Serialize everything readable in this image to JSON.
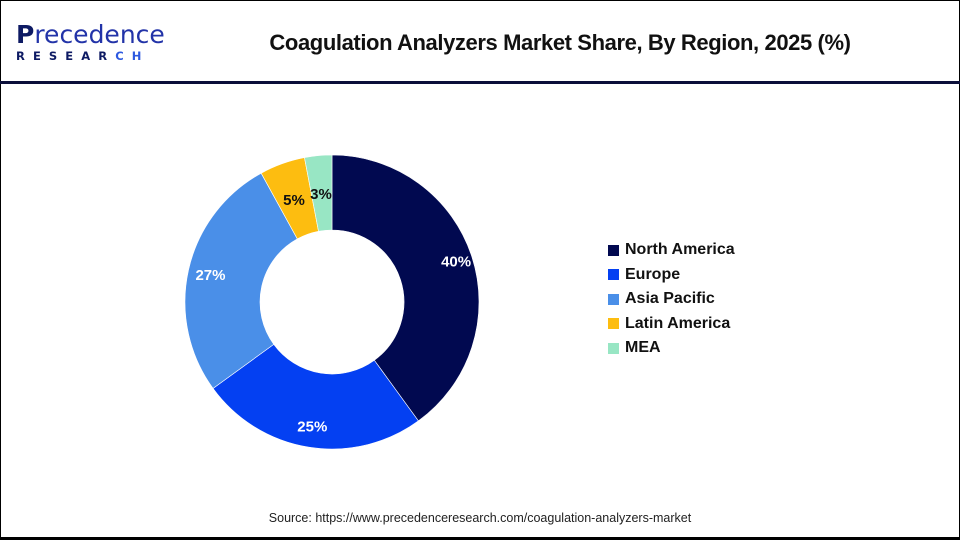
{
  "header": {
    "logo": {
      "brand_first": "P",
      "brand_rest": "recedence",
      "sub_main": "RESEAR",
      "sub_accent": "CH"
    },
    "title": "Coagulation Analyzers Market Share, By Region, 2025 (%)"
  },
  "footer": {
    "source": "Source: https://www.precedenceresearch.com/coagulation-analyzers-market"
  },
  "chart_data": {
    "type": "pie",
    "variant": "donut",
    "title": "Coagulation Analyzers Market Share, By Region, 2025 (%)",
    "categories": [
      "North America",
      "Europe",
      "Asia Pacific",
      "Latin America",
      "MEA"
    ],
    "values": [
      40,
      25,
      27,
      5,
      3
    ],
    "labels": [
      "40%",
      "25%",
      "27%",
      "5%",
      "3%"
    ],
    "colors": [
      "#010950",
      "#0440f2",
      "#4a8fe8",
      "#fdbd10",
      "#98e6c4"
    ],
    "label_colors": [
      "#ffffff",
      "#ffffff",
      "#ffffff",
      "#111111",
      "#111111"
    ],
    "start_angle": "12 o'clock",
    "direction": "clockwise",
    "legend_position": "right",
    "unit": "%"
  },
  "legend": {
    "items": [
      {
        "label": "North America",
        "color": "#010950"
      },
      {
        "label": "Europe",
        "color": "#0440f2"
      },
      {
        "label": "Asia Pacific",
        "color": "#4a8fe8"
      },
      {
        "label": "Latin America",
        "color": "#fdbd10"
      },
      {
        "label": "MEA",
        "color": "#98e6c4"
      }
    ]
  }
}
